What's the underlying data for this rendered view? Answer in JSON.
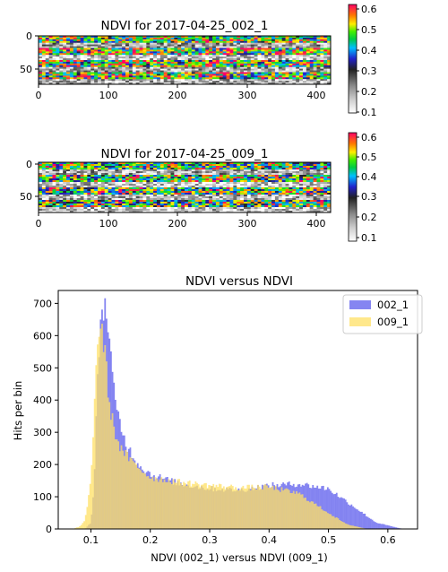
{
  "chart_data": [
    {
      "type": "heatmap",
      "title": "NDVI for 2017-04-25_002_1",
      "xlim": [
        0,
        420
      ],
      "ylim": [
        70,
        0
      ],
      "x_ticks": [
        "0",
        "100",
        "200",
        "300",
        "400"
      ],
      "y_ticks": [
        "0",
        "50"
      ],
      "colorbar": {
        "ticks": [
          "0.1",
          "0.2",
          "0.3",
          "0.4",
          "0.5",
          "0.6"
        ],
        "range": [
          0.1,
          0.6
        ]
      },
      "row_bands": [
        {
          "center": 5,
          "value": 0.45
        },
        {
          "center": 13,
          "value": 0.25
        },
        {
          "center": 22,
          "value": 0.48
        },
        {
          "center": 31,
          "value": 0.22
        },
        {
          "center": 40,
          "value": 0.47
        },
        {
          "center": 49,
          "value": 0.24
        },
        {
          "center": 58,
          "value": 0.46
        },
        {
          "center": 66,
          "value": 0.23
        }
      ]
    },
    {
      "type": "heatmap",
      "title": "NDVI for 2017-04-25_009_1",
      "xlim": [
        0,
        420
      ],
      "ylim": [
        70,
        0
      ],
      "x_ticks": [
        "0",
        "100",
        "200",
        "300",
        "400"
      ],
      "y_ticks": [
        "0",
        "50"
      ],
      "colorbar": {
        "ticks": [
          "0.1",
          "0.2",
          "0.3",
          "0.4",
          "0.5",
          "0.6"
        ],
        "range": [
          0.1,
          0.6
        ]
      },
      "row_bands": [
        {
          "center": 5,
          "value": 0.44
        },
        {
          "center": 13,
          "value": 0.24
        },
        {
          "center": 22,
          "value": 0.46
        },
        {
          "center": 31,
          "value": 0.21
        },
        {
          "center": 40,
          "value": 0.45
        },
        {
          "center": 49,
          "value": 0.23
        },
        {
          "center": 58,
          "value": 0.44
        },
        {
          "center": 66,
          "value": 0.22
        }
      ]
    },
    {
      "type": "bar",
      "subtype": "histogram",
      "title": "NDVI versus NDVI",
      "xlabel": "NDVI (002_1) versus NDVI (009_1)",
      "ylabel": "Hits per bin",
      "xlim": [
        0.045,
        0.65
      ],
      "ylim": [
        0,
        740
      ],
      "x_ticks": [
        0.1,
        0.2,
        0.3,
        0.4,
        0.5,
        0.6
      ],
      "x_tick_labels": [
        "0.1",
        "0.2",
        "0.3",
        "0.4",
        "0.5",
        "0.6"
      ],
      "y_ticks": [
        0,
        100,
        200,
        300,
        400,
        500,
        600,
        700
      ],
      "y_tick_labels": [
        "0",
        "100",
        "200",
        "300",
        "400",
        "500",
        "600",
        "700"
      ],
      "legend_position": "top-right",
      "series": [
        {
          "name": "002_1",
          "color": "#7070ee",
          "opacity": 0.85,
          "profile": [
            [
              0.07,
              0
            ],
            [
              0.09,
              0
            ],
            [
              0.1,
              20
            ],
            [
              0.105,
              120
            ],
            [
              0.11,
              400
            ],
            [
              0.115,
              620
            ],
            [
              0.12,
              700
            ],
            [
              0.125,
              680
            ],
            [
              0.13,
              620
            ],
            [
              0.135,
              500
            ],
            [
              0.14,
              400
            ],
            [
              0.15,
              320
            ],
            [
              0.16,
              260
            ],
            [
              0.18,
              200
            ],
            [
              0.2,
              170
            ],
            [
              0.25,
              140
            ],
            [
              0.3,
              125
            ],
            [
              0.35,
              120
            ],
            [
              0.4,
              135
            ],
            [
              0.45,
              140
            ],
            [
              0.5,
              125
            ],
            [
              0.55,
              60
            ],
            [
              0.58,
              20
            ],
            [
              0.62,
              2
            ],
            [
              0.63,
              0
            ]
          ]
        },
        {
          "name": "009_1",
          "color": "#ffe066",
          "opacity": 0.75,
          "profile": [
            [
              0.07,
              0
            ],
            [
              0.075,
              4
            ],
            [
              0.08,
              6
            ],
            [
              0.09,
              25
            ],
            [
              0.1,
              150
            ],
            [
              0.105,
              350
            ],
            [
              0.11,
              560
            ],
            [
              0.115,
              630
            ],
            [
              0.12,
              600
            ],
            [
              0.125,
              520
            ],
            [
              0.13,
              400
            ],
            [
              0.14,
              300
            ],
            [
              0.15,
              250
            ],
            [
              0.17,
              205
            ],
            [
              0.2,
              160
            ],
            [
              0.25,
              145
            ],
            [
              0.3,
              135
            ],
            [
              0.35,
              128
            ],
            [
              0.4,
              130
            ],
            [
              0.45,
              110
            ],
            [
              0.5,
              50
            ],
            [
              0.53,
              15
            ],
            [
              0.56,
              2
            ],
            [
              0.57,
              0
            ]
          ]
        }
      ]
    }
  ]
}
